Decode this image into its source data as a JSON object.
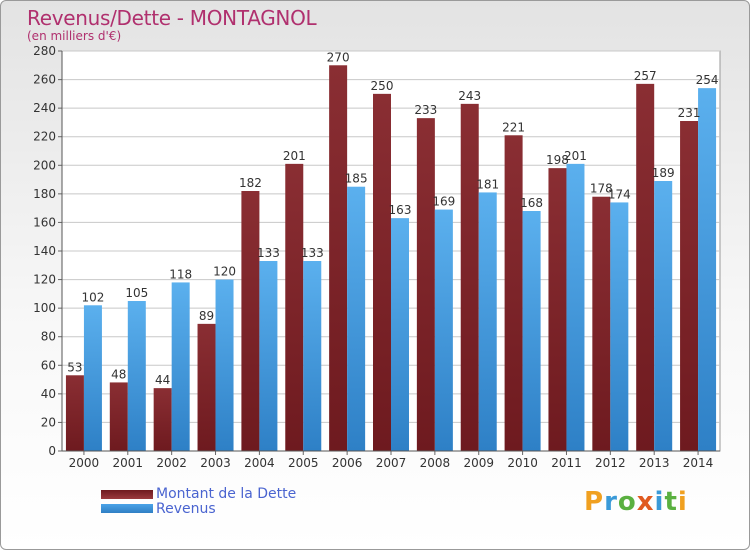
{
  "title": "Revenus/Dette - MONTAGNOL",
  "subtitle": "(en milliers d'€)",
  "colors": {
    "dette": "#6e1a1f",
    "revenus": "#4aa3e8",
    "title": "#b0306e",
    "legend_text": "#4a64d0"
  },
  "logo": {
    "text": "Proxiti",
    "letters": [
      {
        "ch": "P",
        "color": "#f0a020"
      },
      {
        "ch": "r",
        "color": "#3a9ad8"
      },
      {
        "ch": "o",
        "color": "#5ab040"
      },
      {
        "ch": "x",
        "color": "#e05a20"
      },
      {
        "ch": "i",
        "color": "#3a9ad8"
      },
      {
        "ch": "t",
        "color": "#5ab040"
      },
      {
        "ch": "i",
        "color": "#f0a020"
      }
    ]
  },
  "legend": {
    "dette_label": "Montant de la Dette",
    "revenus_label": "Revenus"
  },
  "chart_data": {
    "type": "bar",
    "title": "Revenus/Dette - MONTAGNOL",
    "subtitle": "(en milliers d'€)",
    "categories": [
      "2000",
      "2001",
      "2002",
      "2003",
      "2004",
      "2005",
      "2006",
      "2007",
      "2008",
      "2009",
      "2010",
      "2011",
      "2012",
      "2013",
      "2014"
    ],
    "series": [
      {
        "name": "Montant de la Dette",
        "values": [
          53,
          48,
          44,
          89,
          182,
          201,
          270,
          250,
          233,
          243,
          221,
          198,
          178,
          257,
          231
        ]
      },
      {
        "name": "Revenus",
        "values": [
          102,
          105,
          118,
          120,
          133,
          133,
          185,
          163,
          169,
          181,
          168,
          201,
          174,
          189,
          254
        ]
      }
    ],
    "ylim": [
      0,
      280
    ],
    "yticks": [
      0,
      20,
      40,
      60,
      80,
      100,
      120,
      140,
      160,
      180,
      200,
      220,
      240,
      260,
      280
    ],
    "grid": true,
    "legend_position": "bottom-left"
  }
}
